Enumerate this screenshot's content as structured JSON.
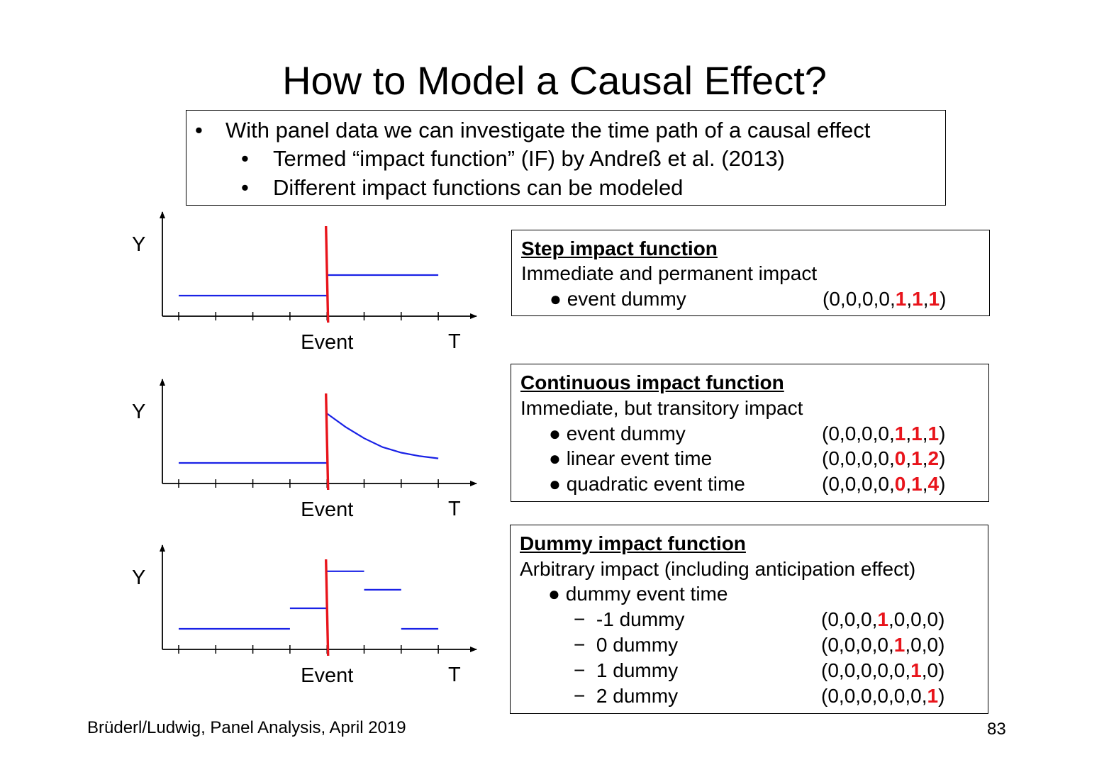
{
  "title": "How to Model a Causal Effect?",
  "intro": {
    "bullets": [
      {
        "marker": "•",
        "text": "With panel data we can investigate the time path of a causal effect"
      },
      {
        "marker": "•",
        "text": "Termed “impact function” (IF) by Andreß et al. (2013)"
      },
      {
        "marker": "•",
        "text": "Different impact functions can be modeled"
      }
    ]
  },
  "plots": {
    "y_label": "Y",
    "t_label": "T",
    "event_label": "Event",
    "colors": {
      "event_line": "#e8141b",
      "curve": "#1a22e6",
      "axis": "#000000"
    }
  },
  "chart_data": [
    {
      "type": "line",
      "periods": [
        1,
        2,
        3,
        4,
        5,
        6,
        7
      ],
      "event_period": 5,
      "segments": [
        {
          "x": [
            1,
            5
          ],
          "y": [
            1,
            1
          ]
        },
        {
          "x": [
            5,
            8
          ],
          "y": [
            2,
            2
          ]
        }
      ]
    },
    {
      "type": "line",
      "periods": [
        1,
        2,
        3,
        4,
        5,
        6,
        7
      ],
      "event_period": 5,
      "segments": [
        {
          "x": [
            1,
            5
          ],
          "y": [
            1,
            1
          ]
        },
        {
          "x": [
            5,
            5.5,
            6,
            6.5,
            7,
            7.5,
            8
          ],
          "y": [
            3.4,
            2.75,
            2.2,
            1.77,
            1.5,
            1.33,
            1.22
          ]
        }
      ]
    },
    {
      "type": "line",
      "periods": [
        1,
        2,
        3,
        4,
        5,
        6,
        7
      ],
      "event_period": 5,
      "segments": [
        {
          "x": [
            1,
            4
          ],
          "y": [
            1,
            1
          ]
        },
        {
          "x": [
            4,
            5
          ],
          "y": [
            2,
            2
          ]
        },
        {
          "x": [
            5,
            6
          ],
          "y": [
            3.8,
            3.8
          ]
        },
        {
          "x": [
            6,
            7
          ],
          "y": [
            2.9,
            2.9
          ]
        },
        {
          "x": [
            7,
            8
          ],
          "y": [
            1,
            1
          ]
        }
      ]
    }
  ],
  "boxes": {
    "step": {
      "heading": "Step impact function",
      "description": "Immediate and permanent impact",
      "items": [
        {
          "marker": "●",
          "label": "event dummy",
          "vector": [
            "0",
            "0",
            "0",
            "0",
            "1",
            "1",
            "1"
          ],
          "highlight": [
            4,
            5,
            6
          ]
        }
      ]
    },
    "continuous": {
      "heading": "Continuous impact function",
      "description": "Immediate, but transitory impact",
      "items": [
        {
          "marker": "●",
          "label": "event dummy",
          "vector": [
            "0",
            "0",
            "0",
            "0",
            "1",
            "1",
            "1"
          ],
          "highlight": [
            4,
            5,
            6
          ]
        },
        {
          "marker": "●",
          "label": "linear event time",
          "vector": [
            "0",
            "0",
            "0",
            "0",
            "0",
            "1",
            "2"
          ],
          "highlight": [
            4,
            5,
            6
          ]
        },
        {
          "marker": "●",
          "label": "quadratic event time",
          "vector": [
            "0",
            "0",
            "0",
            "0",
            "0",
            "1",
            "4"
          ],
          "highlight": [
            4,
            5,
            6
          ]
        }
      ]
    },
    "dummy": {
      "heading": "Dummy impact function",
      "description": "Arbitrary impact (including anticipation effect)",
      "group": {
        "marker": "●",
        "label": "dummy event time"
      },
      "items": [
        {
          "marker": "−",
          "label": "-1 dummy",
          "vector": [
            "0",
            "0",
            "0",
            "1",
            "0",
            "0",
            "0"
          ],
          "highlight": [
            3
          ]
        },
        {
          "marker": "−",
          "label": "0 dummy",
          "vector": [
            "0",
            "0",
            "0",
            "0",
            "1",
            "0",
            "0"
          ],
          "highlight": [
            4
          ]
        },
        {
          "marker": "−",
          "label": "1 dummy",
          "vector": [
            "0",
            "0",
            "0",
            "0",
            "0",
            "1",
            "0"
          ],
          "highlight": [
            5
          ]
        },
        {
          "marker": "−",
          "label": "2 dummy",
          "vector": [
            "0",
            "0",
            "0",
            "0",
            "0",
            "0",
            "1"
          ],
          "highlight": [
            6
          ]
        }
      ]
    }
  },
  "footer": {
    "left": "Brüderl/Ludwig, Panel Analysis, April 2019",
    "page_number": "83"
  }
}
